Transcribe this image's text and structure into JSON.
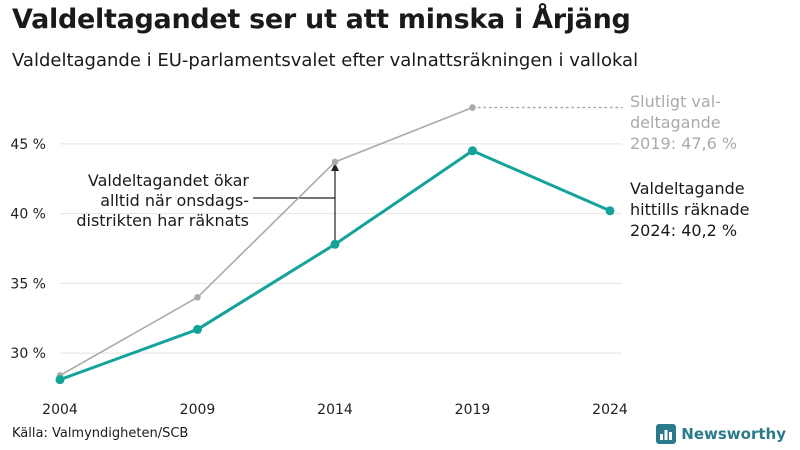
{
  "title": "Valdeltagandet ser ut att minska i Årjäng",
  "subtitle": "Valdeltagande i EU-parlamentsvalet efter valnattsräkningen i vallokal",
  "source": "Källa: Valmyndigheten/SCB",
  "brand": {
    "name": "Newsworthy",
    "icon": "newsworthy-logo-icon",
    "color": "#2b7a8c"
  },
  "chart_data": {
    "type": "line",
    "title": "Valdeltagandet ser ut att minska i Årjäng",
    "subtitle": "Valdeltagande i EU-parlamentsvalet efter valnattsräkningen i vallokal",
    "x": [
      2004,
      2009,
      2014,
      2019,
      2024
    ],
    "x_ticks": [
      "2004",
      "2009",
      "2014",
      "2019",
      "2024"
    ],
    "y_ticks": [
      "30 %",
      "35 %",
      "40 %",
      "45 %"
    ],
    "y_tick_values": [
      30,
      35,
      40,
      45
    ],
    "ylim": [
      27,
      49
    ],
    "grid": true,
    "series": [
      {
        "name": "Slutligt valdeltagande",
        "color": "#aaaaaa",
        "values": [
          28.4,
          34.0,
          43.7,
          47.6,
          null
        ]
      },
      {
        "name": "Valdeltagande hittills räknade",
        "color": "#13a39a",
        "values": [
          28.1,
          31.7,
          37.8,
          44.5,
          40.2
        ]
      }
    ],
    "annotations": {
      "final": {
        "lines": [
          "Slutligt val-",
          "deltagande",
          "2019: 47,6 %"
        ],
        "color": "#aaaaaa"
      },
      "current": {
        "lines": [
          "Valdeltagande",
          "hittills räknade",
          "2024: 40,2 %"
        ],
        "color": "#1a1a1a"
      },
      "note": {
        "lines": [
          "Valdeltagandet ökar",
          "alltid när onsdags-",
          "distrikten har räknats"
        ],
        "color": "#1a1a1a"
      }
    }
  }
}
